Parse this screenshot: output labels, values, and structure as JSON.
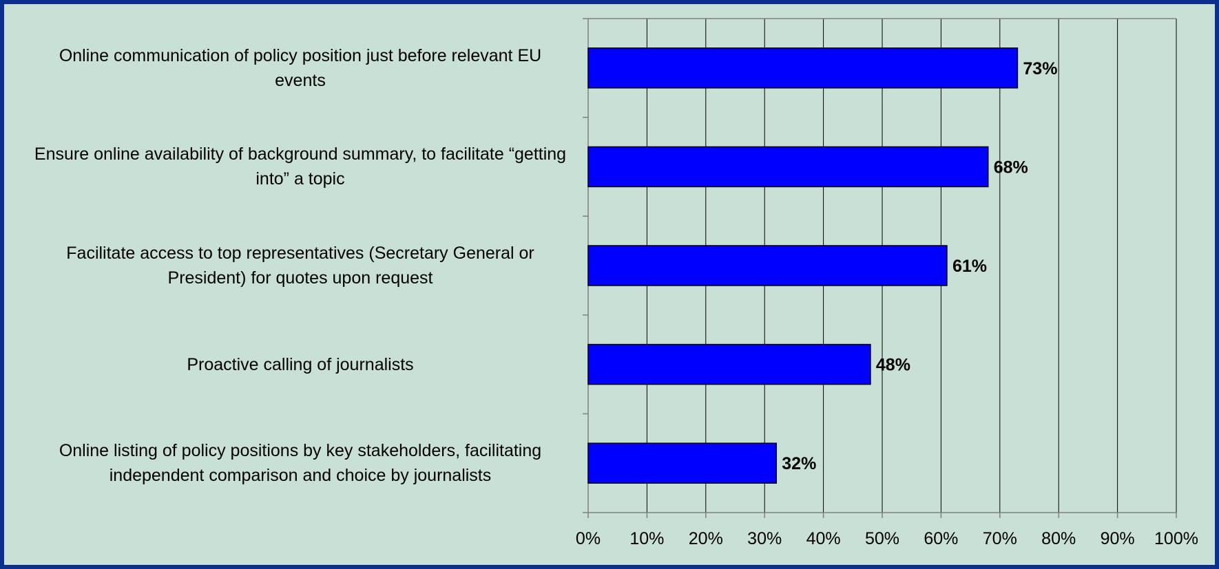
{
  "chart_data": {
    "type": "bar",
    "orientation": "horizontal",
    "categories": [
      "Online communication of policy position just before relevant EU events",
      "Ensure online availability of background summary, to facilitate “getting into” a topic",
      "Facilitate access to top representatives (Secretary General or President) for quotes upon request",
      "Proactive calling of journalists",
      "Online listing of policy positions by key stakeholders, facilitating independent comparison and choice by journalists"
    ],
    "values": [
      73,
      68,
      61,
      48,
      32
    ],
    "data_labels": [
      "73%",
      "68%",
      "61%",
      "48%",
      "32%"
    ],
    "x_ticks": [
      "0%",
      "10%",
      "20%",
      "30%",
      "40%",
      "50%",
      "60%",
      "70%",
      "80%",
      "90%",
      "100%"
    ],
    "xlim": [
      0,
      100
    ],
    "title": "",
    "xlabel": "",
    "ylabel": "",
    "grid": "vertical",
    "legend": "none",
    "colors": {
      "bar": "#0000ff",
      "background": "#c8e0d6",
      "frame": "#0d2f8c",
      "grid": "#000000"
    }
  }
}
